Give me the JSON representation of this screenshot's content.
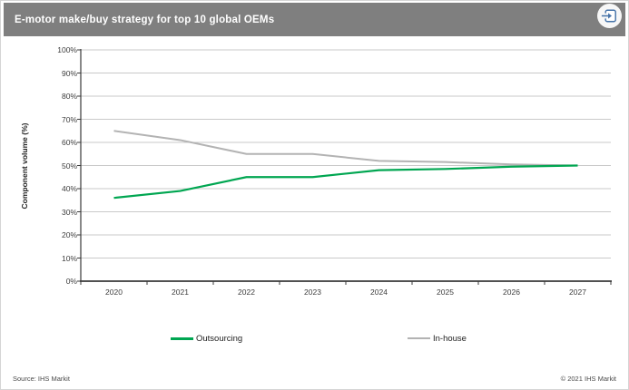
{
  "header": {
    "title": "E-motor make/buy strategy for top 10 global OEMs"
  },
  "chart_data": {
    "type": "line",
    "title": "E-motor make/buy strategy for top 10 global OEMs",
    "xlabel": "",
    "ylabel": "Component volume (%)",
    "ylim": [
      0,
      100
    ],
    "ytick_step": 10,
    "grid": true,
    "legend_position": "bottom",
    "categories": [
      "2020",
      "2021",
      "2022",
      "2023",
      "2024",
      "2025",
      "2026",
      "2027"
    ],
    "ytick_labels": [
      "100%",
      "90%",
      "80%",
      "70%",
      "60%",
      "50%",
      "40%",
      "30%",
      "20%",
      "10%",
      "0%"
    ],
    "series": [
      {
        "name": "In-house",
        "color": "#b3b3b3",
        "width": 2,
        "values": [
          65,
          61,
          55,
          55,
          52,
          51.5,
          50.5,
          50
        ]
      },
      {
        "name": "Outsourcing",
        "color": "#00a651",
        "width": 2.2,
        "values": [
          36,
          39,
          45,
          45,
          48,
          48.5,
          49.5,
          50
        ]
      }
    ]
  },
  "legend": {
    "items": [
      {
        "label": "Outsourcing",
        "color": "#00a651"
      },
      {
        "label": "In-house",
        "color": "#b3b3b3"
      }
    ]
  },
  "footer": {
    "source": "Source: IHS Markit",
    "copyright": "© 2021 IHS Markit"
  },
  "colors": {
    "header_bg": "#7f7f7f",
    "header_text": "#ffffff",
    "accent_blue": "#4472a8",
    "grid": "#c9c9c9",
    "axis": "#3a3a3a"
  }
}
